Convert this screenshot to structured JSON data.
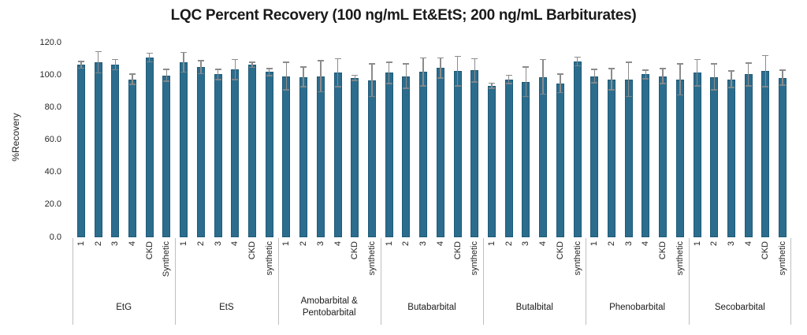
{
  "chart_data": {
    "type": "bar",
    "title": "LQC Percent Recovery (100 ng/mL Et&EtS; 200 ng/mL Barbiturates)",
    "ylabel": "%Recovery",
    "ylim": [
      0,
      120
    ],
    "ytick_step": 20,
    "ytick_labels": [
      "0.0",
      "20.0",
      "40.0",
      "60.0",
      "80.0",
      "100.0",
      "120.0"
    ],
    "grid": false,
    "legend_position": "none",
    "bar_color": "#2C6D8E",
    "bar_edge_color": "#1E5A77",
    "error_color": "#8C8C8C",
    "divider_color": "#BFBFBF",
    "groups": [
      {
        "label": "EtG",
        "samples": [
          "1",
          "2",
          "3",
          "4",
          "CKD",
          "Synthetic"
        ],
        "values": [
          106.5,
          108.0,
          106.5,
          97.5,
          111.0,
          100.0
        ],
        "errors": [
          2.0,
          6.5,
          3.0,
          3.0,
          2.5,
          3.5
        ]
      },
      {
        "label": "EtS",
        "samples": [
          "1",
          "2",
          "3",
          "4",
          "CKD",
          "synthetic"
        ],
        "values": [
          108.0,
          105.0,
          100.5,
          103.5,
          106.5,
          102.0
        ],
        "errors": [
          6.0,
          4.0,
          3.0,
          6.0,
          1.5,
          2.0
        ]
      },
      {
        "label": "Amobarbital & Pentobarbital",
        "samples": [
          "1",
          "2",
          "3",
          "4",
          "CKD",
          "synthetic"
        ],
        "values": [
          99.5,
          99.0,
          99.5,
          101.5,
          98.5,
          97.0
        ],
        "errors": [
          8.5,
          6.0,
          9.5,
          8.5,
          1.5,
          10.0
        ]
      },
      {
        "label": "Butabarbital",
        "samples": [
          "1",
          "2",
          "3",
          "4",
          "CKD",
          "synthetic"
        ],
        "values": [
          101.5,
          99.5,
          102.0,
          104.5,
          102.5,
          103.0
        ],
        "errors": [
          6.5,
          7.5,
          8.5,
          6.0,
          9.0,
          7.0
        ]
      },
      {
        "label": "Butalbital",
        "samples": [
          "1",
          "2",
          "3",
          "4",
          "CKD",
          "synthetic"
        ],
        "values": [
          93.5,
          97.5,
          96.0,
          99.0,
          95.0,
          108.5
        ],
        "errors": [
          1.5,
          2.5,
          9.0,
          10.5,
          5.5,
          2.5
        ]
      },
      {
        "label": "Phenobarbital",
        "samples": [
          "1",
          "2",
          "3",
          "4",
          "CKD",
          "synthetic"
        ],
        "values": [
          99.5,
          97.5,
          97.5,
          100.5,
          99.5,
          97.5
        ],
        "errors": [
          4.0,
          6.5,
          10.5,
          2.5,
          4.5,
          9.5
        ]
      },
      {
        "label": "Secobarbital",
        "samples": [
          "1",
          "2",
          "3",
          "4",
          "CKD",
          "synthetic"
        ],
        "values": [
          101.5,
          99.0,
          97.5,
          100.5,
          102.5,
          98.5
        ],
        "errors": [
          8.0,
          8.0,
          5.0,
          7.0,
          9.5,
          4.5
        ]
      }
    ]
  }
}
